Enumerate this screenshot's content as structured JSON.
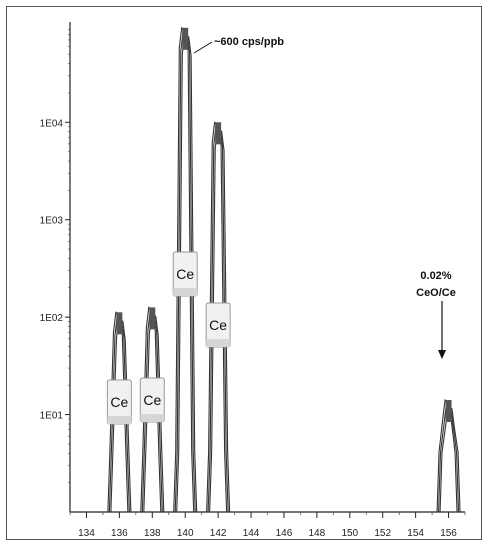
{
  "chart_data": {
    "type": "line",
    "title": "",
    "xlabel": "",
    "ylabel": "",
    "x_tick_labels": [
      "134",
      "136",
      "138",
      "140",
      "142",
      "144",
      "146",
      "148",
      "150",
      "152",
      "154",
      "156"
    ],
    "y_tick_labels": [
      "1E01",
      "1E02",
      "1E03",
      "1E04"
    ],
    "y_scale": "log",
    "xlim": [
      133,
      157
    ],
    "ylim_log10": [
      0,
      5.05
    ],
    "grid": false,
    "series": [
      {
        "values": [
          {
            "x": 136,
            "log10_y": 2.05
          },
          {
            "x": 138,
            "log10_y": 2.1
          },
          {
            "x": 140,
            "log10_y": 4.97
          },
          {
            "x": 142,
            "log10_y": 4.0
          },
          {
            "x": 156,
            "log10_y": 1.15
          }
        ]
      }
    ],
    "peak_labels": [
      {
        "text": "Ce",
        "x": 136
      },
      {
        "text": "Ce",
        "x": 138
      },
      {
        "text": "Ce",
        "x": 140
      },
      {
        "text": "Ce",
        "x": 142
      }
    ],
    "annotations": {
      "peak_140": "~600 cps/ppb",
      "oxide_percent": "0.02%",
      "oxide_ratio": "CeO/Ce"
    }
  }
}
